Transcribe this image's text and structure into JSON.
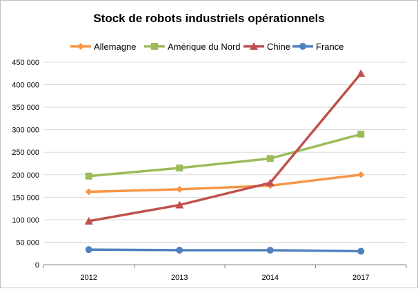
{
  "chart_data": {
    "type": "line",
    "title": "Stock de robots industriels  opérationnels",
    "xlabel": "",
    "ylabel": "",
    "categories": [
      "2012",
      "2013",
      "2014",
      "2017"
    ],
    "ylim": [
      0,
      450000
    ],
    "yticks": [
      0,
      50000,
      100000,
      150000,
      200000,
      250000,
      300000,
      350000,
      400000,
      450000
    ],
    "ytick_labels": [
      "0",
      "50 000",
      "100 000",
      "150 000",
      "200 000",
      "250 000",
      "300 000",
      "350 000",
      "400 000",
      "450 000"
    ],
    "grid": "horizontal",
    "legend_position": "top",
    "series": [
      {
        "name": "Allemagne",
        "color": "#f79646",
        "marker": "diamond",
        "values": [
          161988,
          167579,
          175768,
          200000
        ]
      },
      {
        "name": "Amérique du Nord",
        "color": "#9bbb59",
        "marker": "square",
        "values": [
          197000,
          215000,
          236000,
          290000
        ]
      },
      {
        "name": "Chine",
        "color": "#c0504d",
        "marker": "triangle",
        "values": [
          96924,
          132784,
          182000,
          425000
        ]
      },
      {
        "name": "France",
        "color": "#4f81bd",
        "marker": "circle",
        "values": [
          33600,
          32300,
          32200,
          30000
        ]
      }
    ]
  }
}
